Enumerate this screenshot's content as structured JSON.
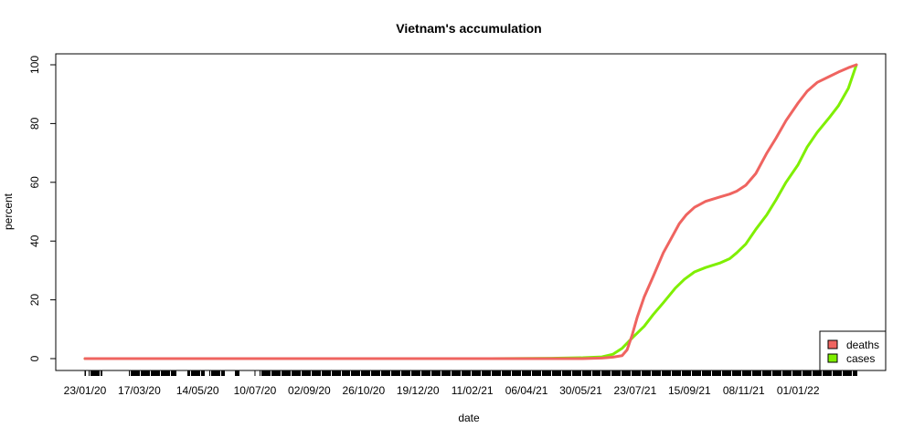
{
  "chart_data": {
    "type": "line",
    "title": "Vietnam's accumulation",
    "xlabel": "date",
    "ylabel": "percent",
    "x_axis": "date",
    "xlim": [
      "2020-01-23",
      "2022-02-28"
    ],
    "ylim": [
      0,
      100
    ],
    "y_ticks": [
      0,
      20,
      40,
      60,
      80,
      100
    ],
    "x_tick_labels": [
      "23/01/20",
      "17/03/20",
      "14/05/20",
      "10/07/20",
      "02/09/20",
      "26/10/20",
      "19/12/20",
      "11/02/21",
      "06/04/21",
      "30/05/21",
      "23/07/21",
      "15/09/21",
      "08/11/21",
      "01/01/22"
    ],
    "grid": false,
    "legend_position": "bottom-right",
    "series": [
      {
        "name": "deaths",
        "color": "#ef6460",
        "x": [
          "2020-01-23",
          "2021-03-01",
          "2021-06-01",
          "2021-06-20",
          "2021-07-01",
          "2021-07-10",
          "2021-07-15",
          "2021-07-20",
          "2021-07-25",
          "2021-08-01",
          "2021-08-10",
          "2021-08-20",
          "2021-08-28",
          "2021-09-05",
          "2021-09-12",
          "2021-09-20",
          "2021-10-01",
          "2021-10-15",
          "2021-10-25",
          "2021-11-01",
          "2021-11-10",
          "2021-11-20",
          "2021-12-01",
          "2021-12-10",
          "2021-12-20",
          "2022-01-01",
          "2022-01-10",
          "2022-01-20",
          "2022-02-01",
          "2022-02-10",
          "2022-02-20",
          "2022-02-28"
        ],
        "y": [
          0,
          0,
          0,
          0.2,
          0.5,
          1,
          3,
          8,
          14,
          21,
          28,
          36,
          41,
          46,
          49,
          51.5,
          53.5,
          55,
          56,
          57,
          59,
          63,
          70,
          75,
          81,
          87,
          91,
          94,
          96,
          97.5,
          99,
          100
        ]
      },
      {
        "name": "cases",
        "color": "#7fef00",
        "x": [
          "2020-01-23",
          "2021-03-01",
          "2021-05-01",
          "2021-06-01",
          "2021-06-20",
          "2021-07-01",
          "2021-07-10",
          "2021-07-20",
          "2021-08-01",
          "2021-08-10",
          "2021-08-20",
          "2021-09-01",
          "2021-09-10",
          "2021-09-20",
          "2021-10-01",
          "2021-10-15",
          "2021-10-25",
          "2021-11-01",
          "2021-11-10",
          "2021-11-20",
          "2021-12-01",
          "2021-12-10",
          "2021-12-20",
          "2022-01-01",
          "2022-01-10",
          "2022-01-20",
          "2022-02-01",
          "2022-02-10",
          "2022-02-20",
          "2022-02-28"
        ],
        "y": [
          0,
          0,
          0.1,
          0.3,
          0.6,
          1.5,
          3.5,
          7,
          11,
          15,
          19,
          24,
          27,
          29.5,
          31,
          32.5,
          34,
          36,
          39,
          44,
          49,
          54,
          60,
          66,
          72,
          77,
          82,
          86,
          92,
          100
        ]
      }
    ],
    "rug_dates": {
      "note_free": true,
      "ranges": [
        [
          "2020-01-23",
          "2020-01-23"
        ],
        [
          "2020-01-27",
          "2020-02-08"
        ],
        [
          "2020-03-07",
          "2020-04-22"
        ],
        [
          "2020-05-04",
          "2020-05-20"
        ],
        [
          "2020-05-26",
          "2020-06-09"
        ],
        [
          "2020-06-20",
          "2020-06-24"
        ],
        [
          "2020-07-15",
          "2021-02-28"
        ],
        [
          "2021-03-01",
          "2021-05-15"
        ],
        [
          "2021-05-16",
          "2022-02-28"
        ]
      ]
    }
  }
}
